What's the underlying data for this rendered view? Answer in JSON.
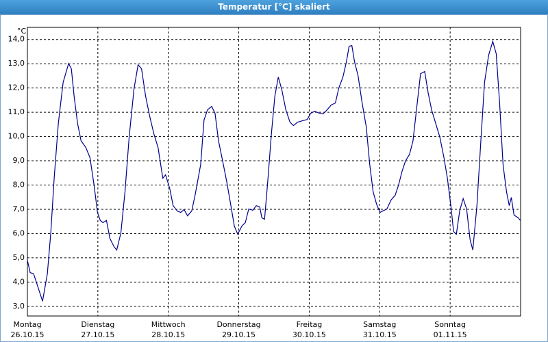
{
  "window_title": "Temperatur [°C] skaliert",
  "chart_data": {
    "type": "line",
    "y_unit": "°C",
    "xlim": [
      0,
      7
    ],
    "ylim": [
      2.6,
      14.5
    ],
    "xticks": [
      {
        "value": 0,
        "label": "Montag\n26.10.15"
      },
      {
        "value": 1,
        "label": "Dienstag\n27.10.15"
      },
      {
        "value": 2,
        "label": "Mittwoch\n28.10.15"
      },
      {
        "value": 3,
        "label": "Donnerstag\n29.10.15"
      },
      {
        "value": 4,
        "label": "Freitag\n30.10.15"
      },
      {
        "value": 5,
        "label": "Samstag\n31.10.15"
      },
      {
        "value": 6,
        "label": "Sonntag\n01.11.15"
      }
    ],
    "yticks": [
      {
        "value": 3,
        "label": "3,0"
      },
      {
        "value": 4,
        "label": "4,0"
      },
      {
        "value": 5,
        "label": "5,0"
      },
      {
        "value": 6,
        "label": "6,0"
      },
      {
        "value": 7,
        "label": "7,0"
      },
      {
        "value": 8,
        "label": "8,0"
      },
      {
        "value": 9,
        "label": "9,0"
      },
      {
        "value": 10,
        "label": "10,0"
      },
      {
        "value": 11,
        "label": "11,0"
      },
      {
        "value": 12,
        "label": "12,0"
      },
      {
        "value": 13,
        "label": "13,0"
      },
      {
        "value": 14,
        "label": "14,0"
      }
    ],
    "grid": true,
    "color": "#00008b",
    "x": [
      0.0,
      0.039,
      0.088,
      0.146,
      0.215,
      0.283,
      0.332,
      0.38,
      0.439,
      0.507,
      0.585,
      0.624,
      0.663,
      0.712,
      0.761,
      0.829,
      0.888,
      0.946,
      0.995,
      1.034,
      1.073,
      1.122,
      1.171,
      1.229,
      1.268,
      1.327,
      1.385,
      1.444,
      1.512,
      1.571,
      1.62,
      1.678,
      1.737,
      1.795,
      1.854,
      1.922,
      1.961,
      2.02,
      2.068,
      2.127,
      2.176,
      2.224,
      2.273,
      2.332,
      2.38,
      2.459,
      2.507,
      2.556,
      2.615,
      2.663,
      2.712,
      2.771,
      2.829,
      2.888,
      2.937,
      2.985,
      3.044,
      3.093,
      3.141,
      3.2,
      3.249,
      3.298,
      3.327,
      3.366,
      3.415,
      3.463,
      3.512,
      3.561,
      3.61,
      3.668,
      3.727,
      3.776,
      3.834,
      3.902,
      3.971,
      4.02,
      4.078,
      4.146,
      4.195,
      4.254,
      4.312,
      4.371,
      4.42,
      4.478,
      4.527,
      4.566,
      4.605,
      4.644,
      4.693,
      4.751,
      4.81,
      4.859,
      4.907,
      4.956,
      5.005,
      5.044,
      5.102,
      5.161,
      5.22,
      5.268,
      5.317,
      5.366,
      5.424,
      5.473,
      5.522,
      5.58,
      5.639,
      5.688,
      5.737,
      5.795,
      5.854,
      5.912,
      5.961,
      6.01,
      6.049,
      6.088,
      6.137,
      6.185,
      6.234,
      6.283,
      6.322,
      6.38,
      6.439,
      6.488,
      6.546,
      6.605,
      6.654,
      6.702,
      6.751,
      6.8,
      6.839,
      6.868,
      6.907,
      6.966,
      6.995
    ],
    "values": [
      4.9,
      4.39,
      4.34,
      3.83,
      3.21,
      4.34,
      6.03,
      8.28,
      10.54,
      12.23,
      13.01,
      12.79,
      11.66,
      10.54,
      9.83,
      9.55,
      9.13,
      8.0,
      6.87,
      6.54,
      6.45,
      6.54,
      5.8,
      5.46,
      5.32,
      6.03,
      7.72,
      9.97,
      11.94,
      12.96,
      12.79,
      11.66,
      10.82,
      10.11,
      9.55,
      8.28,
      8.42,
      7.86,
      7.15,
      6.93,
      6.87,
      6.99,
      6.73,
      6.93,
      7.58,
      8.84,
      10.68,
      11.1,
      11.24,
      10.96,
      9.83,
      8.99,
      8.14,
      7.15,
      6.31,
      5.97,
      6.31,
      6.45,
      7.01,
      6.96,
      7.15,
      7.1,
      6.65,
      6.59,
      8.28,
      10.11,
      11.66,
      12.45,
      11.94,
      11.1,
      10.59,
      10.45,
      10.59,
      10.65,
      10.7,
      10.96,
      11.04,
      10.96,
      10.93,
      11.1,
      11.3,
      11.38,
      12.0,
      12.45,
      13.07,
      13.72,
      13.75,
      13.07,
      12.51,
      11.38,
      10.39,
      8.84,
      7.72,
      7.21,
      6.87,
      6.93,
      7.01,
      7.38,
      7.58,
      8.0,
      8.56,
      8.99,
      9.27,
      9.83,
      11.1,
      12.59,
      12.68,
      11.8,
      11.1,
      10.54,
      9.97,
      9.13,
      8.28,
      7.15,
      6.08,
      5.97,
      6.96,
      7.44,
      7.01,
      5.75,
      5.32,
      7.15,
      9.97,
      12.23,
      13.35,
      13.92,
      13.41,
      11.38,
      8.84,
      7.72,
      7.15,
      7.49,
      6.76,
      6.65,
      6.54
    ]
  }
}
